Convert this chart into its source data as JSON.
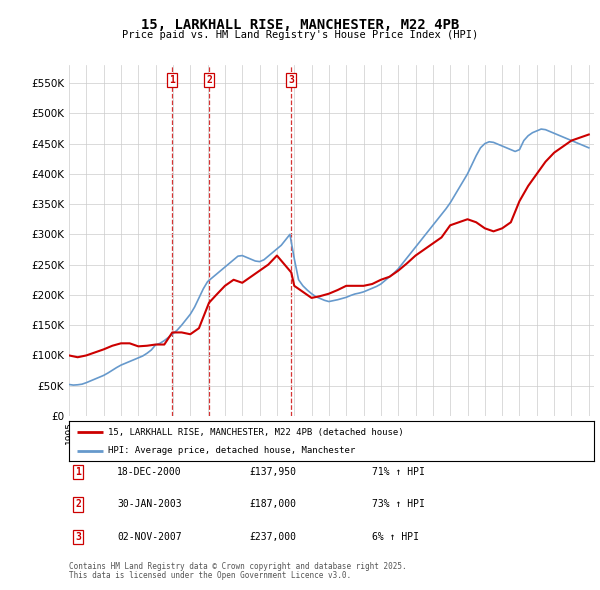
{
  "title": "15, LARKHALL RISE, MANCHESTER, M22 4PB",
  "subtitle": "Price paid vs. HM Land Registry's House Price Index (HPI)",
  "ylim": [
    0,
    580000
  ],
  "yticks": [
    0,
    50000,
    100000,
    150000,
    200000,
    250000,
    300000,
    350000,
    400000,
    450000,
    500000,
    550000
  ],
  "background_color": "#ffffff",
  "grid_color": "#cccccc",
  "legend_entry1": "15, LARKHALL RISE, MANCHESTER, M22 4PB (detached house)",
  "legend_entry2": "HPI: Average price, detached house, Manchester",
  "red_color": "#cc0000",
  "blue_color": "#6699cc",
  "transactions": [
    {
      "label": "1",
      "date": "18-DEC-2000",
      "price": 137950,
      "pct": "71%",
      "dir": "↑",
      "x": 2000.96
    },
    {
      "label": "2",
      "date": "30-JAN-2003",
      "price": 187000,
      "pct": "73%",
      "dir": "↑",
      "x": 2003.08
    },
    {
      "label": "3",
      "date": "02-NOV-2007",
      "price": 237000,
      "pct": "6%",
      "dir": "↑",
      "x": 2007.83
    }
  ],
  "footnote1": "Contains HM Land Registry data © Crown copyright and database right 2025.",
  "footnote2": "This data is licensed under the Open Government Licence v3.0.",
  "hpi_data": [
    [
      1995.0,
      52000
    ],
    [
      1995.25,
      51000
    ],
    [
      1995.5,
      51500
    ],
    [
      1995.75,
      52500
    ],
    [
      1996.0,
      55000
    ],
    [
      1996.25,
      58000
    ],
    [
      1996.5,
      61000
    ],
    [
      1996.75,
      64000
    ],
    [
      1997.0,
      67000
    ],
    [
      1997.25,
      71000
    ],
    [
      1997.5,
      75500
    ],
    [
      1997.75,
      80000
    ],
    [
      1998.0,
      84000
    ],
    [
      1998.25,
      87000
    ],
    [
      1998.5,
      90000
    ],
    [
      1998.75,
      93000
    ],
    [
      1999.0,
      96000
    ],
    [
      1999.25,
      99000
    ],
    [
      1999.5,
      103500
    ],
    [
      1999.75,
      109000
    ],
    [
      2000.0,
      117500
    ],
    [
      2000.25,
      120000
    ],
    [
      2000.5,
      124500
    ],
    [
      2000.75,
      130000
    ],
    [
      2001.0,
      136000
    ],
    [
      2001.25,
      142000
    ],
    [
      2001.5,
      150000
    ],
    [
      2001.75,
      159000
    ],
    [
      2002.0,
      168000
    ],
    [
      2002.25,
      180000
    ],
    [
      2002.5,
      195000
    ],
    [
      2002.75,
      210000
    ],
    [
      2003.0,
      222000
    ],
    [
      2003.25,
      228000
    ],
    [
      2003.5,
      234000
    ],
    [
      2003.75,
      240000
    ],
    [
      2004.0,
      246000
    ],
    [
      2004.25,
      252000
    ],
    [
      2004.5,
      258000
    ],
    [
      2004.75,
      264000
    ],
    [
      2005.0,
      265000
    ],
    [
      2005.25,
      262000
    ],
    [
      2005.5,
      259000
    ],
    [
      2005.75,
      256000
    ],
    [
      2006.0,
      255000
    ],
    [
      2006.25,
      258000
    ],
    [
      2006.5,
      264000
    ],
    [
      2006.75,
      270000
    ],
    [
      2007.0,
      276000
    ],
    [
      2007.25,
      282000
    ],
    [
      2007.5,
      291000
    ],
    [
      2007.75,
      300000
    ],
    [
      2008.0,
      260000
    ],
    [
      2008.25,
      225000
    ],
    [
      2008.5,
      215000
    ],
    [
      2008.75,
      208000
    ],
    [
      2009.0,
      202000
    ],
    [
      2009.25,
      197000
    ],
    [
      2009.5,
      194000
    ],
    [
      2009.75,
      191000
    ],
    [
      2010.0,
      189000
    ],
    [
      2010.25,
      190500
    ],
    [
      2010.5,
      192000
    ],
    [
      2010.75,
      194000
    ],
    [
      2011.0,
      196000
    ],
    [
      2011.25,
      199000
    ],
    [
      2011.5,
      201500
    ],
    [
      2011.75,
      203000
    ],
    [
      2012.0,
      205000
    ],
    [
      2012.25,
      208000
    ],
    [
      2012.5,
      211000
    ],
    [
      2012.75,
      214000
    ],
    [
      2013.0,
      218000
    ],
    [
      2013.25,
      224000
    ],
    [
      2013.5,
      230000
    ],
    [
      2013.75,
      236000
    ],
    [
      2014.0,
      243000
    ],
    [
      2014.25,
      252000
    ],
    [
      2014.5,
      261000
    ],
    [
      2014.75,
      270000
    ],
    [
      2015.0,
      279000
    ],
    [
      2015.25,
      288000
    ],
    [
      2015.5,
      297000
    ],
    [
      2015.75,
      306000
    ],
    [
      2016.0,
      315000
    ],
    [
      2016.25,
      324000
    ],
    [
      2016.5,
      333000
    ],
    [
      2016.75,
      342000
    ],
    [
      2017.0,
      352000
    ],
    [
      2017.25,
      364000
    ],
    [
      2017.5,
      376000
    ],
    [
      2017.75,
      388000
    ],
    [
      2018.0,
      400000
    ],
    [
      2018.25,
      415000
    ],
    [
      2018.5,
      430000
    ],
    [
      2018.75,
      443000
    ],
    [
      2019.0,
      450000
    ],
    [
      2019.25,
      453000
    ],
    [
      2019.5,
      452000
    ],
    [
      2019.75,
      449000
    ],
    [
      2020.0,
      446000
    ],
    [
      2020.25,
      443000
    ],
    [
      2020.5,
      440000
    ],
    [
      2020.75,
      437000
    ],
    [
      2021.0,
      440000
    ],
    [
      2021.25,
      455000
    ],
    [
      2021.5,
      463000
    ],
    [
      2021.75,
      468000
    ],
    [
      2022.0,
      471000
    ],
    [
      2022.25,
      474000
    ],
    [
      2022.5,
      473000
    ],
    [
      2022.75,
      470000
    ],
    [
      2023.0,
      467000
    ],
    [
      2023.25,
      464000
    ],
    [
      2023.5,
      461000
    ],
    [
      2023.75,
      458000
    ],
    [
      2024.0,
      455000
    ],
    [
      2024.25,
      452000
    ],
    [
      2024.5,
      449000
    ],
    [
      2024.75,
      446000
    ],
    [
      2025.0,
      443000
    ]
  ],
  "red_data": [
    [
      1995.0,
      100000
    ],
    [
      1995.5,
      97000
    ],
    [
      1996.0,
      100000
    ],
    [
      1996.5,
      105000
    ],
    [
      1997.0,
      110000
    ],
    [
      1997.5,
      116000
    ],
    [
      1998.0,
      120000
    ],
    [
      1998.5,
      120000
    ],
    [
      1999.0,
      115000
    ],
    [
      1999.5,
      116000
    ],
    [
      2000.0,
      118000
    ],
    [
      2000.5,
      118000
    ],
    [
      2000.96,
      137950
    ],
    [
      2001.5,
      138000
    ],
    [
      2002.0,
      135000
    ],
    [
      2002.5,
      145000
    ],
    [
      2003.08,
      187000
    ],
    [
      2003.5,
      200000
    ],
    [
      2004.0,
      215000
    ],
    [
      2004.5,
      225000
    ],
    [
      2005.0,
      220000
    ],
    [
      2005.5,
      230000
    ],
    [
      2006.0,
      240000
    ],
    [
      2006.5,
      250000
    ],
    [
      2007.0,
      265000
    ],
    [
      2007.83,
      237000
    ],
    [
      2008.0,
      215000
    ],
    [
      2008.5,
      205000
    ],
    [
      2009.0,
      195000
    ],
    [
      2009.5,
      198000
    ],
    [
      2010.0,
      202000
    ],
    [
      2010.5,
      208000
    ],
    [
      2011.0,
      215000
    ],
    [
      2011.5,
      215000
    ],
    [
      2012.0,
      215000
    ],
    [
      2012.5,
      218000
    ],
    [
      2013.0,
      225000
    ],
    [
      2013.5,
      230000
    ],
    [
      2014.0,
      240000
    ],
    [
      2014.5,
      252000
    ],
    [
      2015.0,
      265000
    ],
    [
      2015.5,
      275000
    ],
    [
      2016.0,
      285000
    ],
    [
      2016.5,
      295000
    ],
    [
      2017.0,
      315000
    ],
    [
      2017.5,
      320000
    ],
    [
      2018.0,
      325000
    ],
    [
      2018.5,
      320000
    ],
    [
      2019.0,
      310000
    ],
    [
      2019.5,
      305000
    ],
    [
      2020.0,
      310000
    ],
    [
      2020.5,
      320000
    ],
    [
      2021.0,
      355000
    ],
    [
      2021.5,
      380000
    ],
    [
      2022.0,
      400000
    ],
    [
      2022.5,
      420000
    ],
    [
      2023.0,
      435000
    ],
    [
      2023.5,
      445000
    ],
    [
      2024.0,
      455000
    ],
    [
      2024.5,
      460000
    ],
    [
      2025.0,
      465000
    ]
  ]
}
